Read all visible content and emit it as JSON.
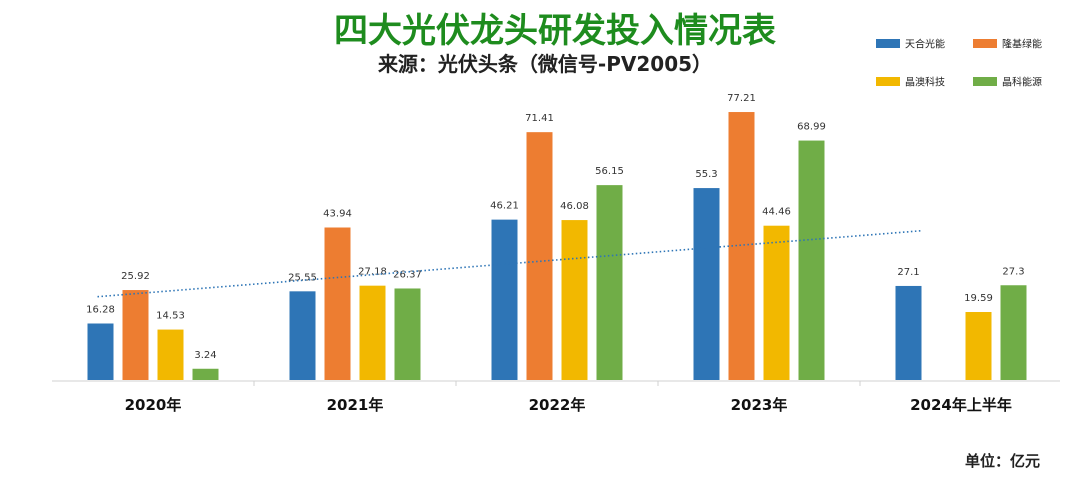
{
  "chart_data": {
    "type": "bar",
    "title": "四大光伏龙头研发投入情况表",
    "subtitle": "来源：光伏头条（微信号-PV2005）",
    "unit_label": "单位：亿元",
    "categories": [
      "2020年",
      "2021年",
      "2022年",
      "2023年",
      "2024年上半年"
    ],
    "series": [
      {
        "name": "天合光能",
        "color": "#2E75B6",
        "values": [
          16.28,
          25.55,
          46.21,
          55.3,
          27.1
        ]
      },
      {
        "name": "隆基绿能",
        "color": "#ED7D31",
        "values": [
          25.92,
          43.94,
          71.41,
          77.21,
          null
        ]
      },
      {
        "name": "晶澳科技",
        "color": "#F2B800",
        "values": [
          14.53,
          27.18,
          46.08,
          44.46,
          19.59
        ]
      },
      {
        "name": "晶科能源",
        "color": "#70AD47",
        "values": [
          3.24,
          26.37,
          56.15,
          68.99,
          27.3
        ]
      }
    ],
    "ylim": [
      0,
      85
    ],
    "trendline": {
      "style": "dotted",
      "color": "#2E75B6",
      "from": 24.0,
      "to": 43.0
    },
    "legend": "top-right",
    "grid": false,
    "title_color": "#1E8C1E"
  }
}
